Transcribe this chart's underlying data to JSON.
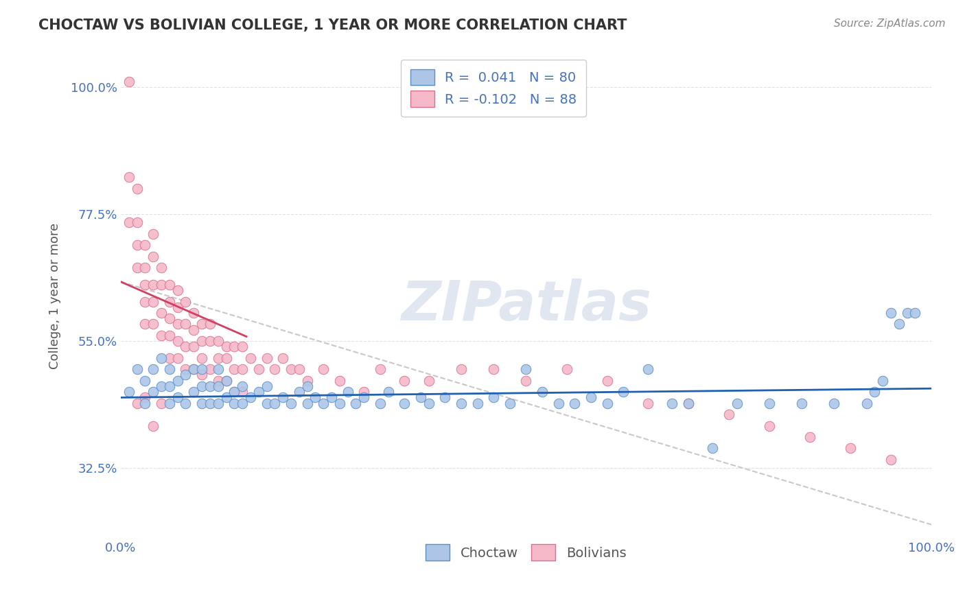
{
  "title": "CHOCTAW VS BOLIVIAN COLLEGE, 1 YEAR OR MORE CORRELATION CHART",
  "source_text": "Source: ZipAtlas.com",
  "ylabel": "College, 1 year or more",
  "xlim": [
    0,
    1
  ],
  "ylim": [
    0.2,
    1.06
  ],
  "yticks": [
    0.325,
    0.55,
    0.775,
    1.0
  ],
  "ytick_labels": [
    "32.5%",
    "55.0%",
    "77.5%",
    "100.0%"
  ],
  "xticks": [
    0,
    1
  ],
  "xtick_labels": [
    "0.0%",
    "100.0%"
  ],
  "legend_r1": "0.041",
  "legend_n1": "80",
  "legend_r2": "-0.102",
  "legend_n2": "88",
  "choctaw_color": "#adc6e8",
  "bolivians_color": "#f5b8c8",
  "choctaw_edge_color": "#5b8ec4",
  "bolivians_edge_color": "#d97090",
  "choctaw_line_color": "#2060b0",
  "bolivians_line_color": "#d04060",
  "dashed_line_color": "#c8c8c8",
  "title_color": "#404040",
  "axis_label_color": "#555555",
  "tick_color": "#4472c4",
  "watermark_color": "#ccd8e8",
  "choctaw_x": [
    0.01,
    0.02,
    0.03,
    0.03,
    0.04,
    0.04,
    0.05,
    0.05,
    0.06,
    0.06,
    0.06,
    0.07,
    0.07,
    0.08,
    0.08,
    0.09,
    0.09,
    0.1,
    0.1,
    0.1,
    0.11,
    0.11,
    0.12,
    0.12,
    0.12,
    0.13,
    0.13,
    0.14,
    0.14,
    0.15,
    0.15,
    0.16,
    0.17,
    0.18,
    0.18,
    0.19,
    0.2,
    0.21,
    0.22,
    0.23,
    0.23,
    0.24,
    0.25,
    0.26,
    0.27,
    0.28,
    0.29,
    0.3,
    0.32,
    0.33,
    0.35,
    0.37,
    0.38,
    0.4,
    0.42,
    0.44,
    0.46,
    0.48,
    0.5,
    0.52,
    0.54,
    0.56,
    0.58,
    0.6,
    0.62,
    0.65,
    0.68,
    0.7,
    0.73,
    0.76,
    0.8,
    0.84,
    0.88,
    0.92,
    0.93,
    0.94,
    0.95,
    0.96,
    0.97,
    0.98
  ],
  "choctaw_y": [
    0.46,
    0.5,
    0.44,
    0.48,
    0.46,
    0.5,
    0.47,
    0.52,
    0.44,
    0.47,
    0.5,
    0.45,
    0.48,
    0.44,
    0.49,
    0.46,
    0.5,
    0.44,
    0.47,
    0.5,
    0.44,
    0.47,
    0.44,
    0.47,
    0.5,
    0.45,
    0.48,
    0.44,
    0.46,
    0.44,
    0.47,
    0.45,
    0.46,
    0.44,
    0.47,
    0.44,
    0.45,
    0.44,
    0.46,
    0.44,
    0.47,
    0.45,
    0.44,
    0.45,
    0.44,
    0.46,
    0.44,
    0.45,
    0.44,
    0.46,
    0.44,
    0.45,
    0.44,
    0.45,
    0.44,
    0.44,
    0.45,
    0.44,
    0.5,
    0.46,
    0.44,
    0.44,
    0.45,
    0.44,
    0.46,
    0.5,
    0.44,
    0.44,
    0.36,
    0.44,
    0.44,
    0.44,
    0.44,
    0.44,
    0.46,
    0.48,
    0.6,
    0.58,
    0.6,
    0.6
  ],
  "bolivians_x": [
    0.01,
    0.01,
    0.01,
    0.02,
    0.02,
    0.02,
    0.02,
    0.03,
    0.03,
    0.03,
    0.03,
    0.03,
    0.04,
    0.04,
    0.04,
    0.04,
    0.04,
    0.05,
    0.05,
    0.05,
    0.05,
    0.06,
    0.06,
    0.06,
    0.06,
    0.06,
    0.07,
    0.07,
    0.07,
    0.07,
    0.07,
    0.08,
    0.08,
    0.08,
    0.08,
    0.09,
    0.09,
    0.09,
    0.09,
    0.1,
    0.1,
    0.1,
    0.1,
    0.11,
    0.11,
    0.11,
    0.12,
    0.12,
    0.12,
    0.13,
    0.13,
    0.13,
    0.14,
    0.14,
    0.14,
    0.15,
    0.15,
    0.15,
    0.16,
    0.17,
    0.18,
    0.19,
    0.2,
    0.21,
    0.22,
    0.23,
    0.25,
    0.27,
    0.3,
    0.32,
    0.35,
    0.38,
    0.42,
    0.46,
    0.5,
    0.55,
    0.6,
    0.65,
    0.7,
    0.75,
    0.8,
    0.85,
    0.9,
    0.95,
    0.02,
    0.03,
    0.04,
    0.05
  ],
  "bolivians_y": [
    1.01,
    0.84,
    0.76,
    0.82,
    0.76,
    0.72,
    0.68,
    0.72,
    0.68,
    0.65,
    0.62,
    0.58,
    0.74,
    0.7,
    0.65,
    0.62,
    0.58,
    0.68,
    0.65,
    0.6,
    0.56,
    0.65,
    0.62,
    0.59,
    0.56,
    0.52,
    0.64,
    0.61,
    0.58,
    0.55,
    0.52,
    0.62,
    0.58,
    0.54,
    0.5,
    0.6,
    0.57,
    0.54,
    0.5,
    0.58,
    0.55,
    0.52,
    0.49,
    0.58,
    0.55,
    0.5,
    0.55,
    0.52,
    0.48,
    0.54,
    0.52,
    0.48,
    0.54,
    0.5,
    0.46,
    0.54,
    0.5,
    0.46,
    0.52,
    0.5,
    0.52,
    0.5,
    0.52,
    0.5,
    0.5,
    0.48,
    0.5,
    0.48,
    0.46,
    0.5,
    0.48,
    0.48,
    0.5,
    0.5,
    0.48,
    0.5,
    0.48,
    0.44,
    0.44,
    0.42,
    0.4,
    0.38,
    0.36,
    0.34,
    0.44,
    0.45,
    0.4,
    0.44
  ],
  "pink_line_x0": 0.0,
  "pink_line_x1": 0.155,
  "pink_line_y0": 0.655,
  "pink_line_y1": 0.558,
  "blue_line_x0": 0.0,
  "blue_line_x1": 1.0,
  "blue_line_y0": 0.45,
  "blue_line_y1": 0.466,
  "dashed_line_x0": 0.0,
  "dashed_line_x1": 1.0,
  "dashed_line_y0": 0.655,
  "dashed_line_y1": 0.225
}
